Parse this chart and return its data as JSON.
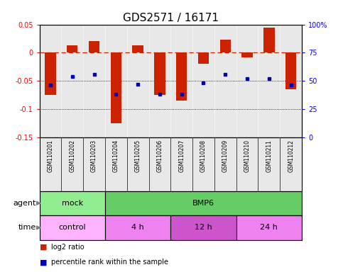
{
  "title": "GDS2571 / 16171",
  "samples": [
    "GSM110201",
    "GSM110202",
    "GSM110203",
    "GSM110204",
    "GSM110205",
    "GSM110206",
    "GSM110207",
    "GSM110208",
    "GSM110209",
    "GSM110210",
    "GSM110211",
    "GSM110212"
  ],
  "log2_ratio": [
    -0.075,
    0.013,
    0.02,
    -0.125,
    0.013,
    -0.075,
    -0.085,
    -0.02,
    0.023,
    -0.008,
    0.045,
    -0.065
  ],
  "percentile": [
    46,
    54,
    56,
    38,
    47,
    38,
    38,
    48,
    56,
    52,
    52,
    46
  ],
  "ylim_left": [
    -0.15,
    0.05
  ],
  "ylim_right": [
    0,
    100
  ],
  "yticks_left": [
    -0.15,
    -0.1,
    -0.05,
    0,
    0.05
  ],
  "yticks_right": [
    0,
    25,
    50,
    75,
    100
  ],
  "agent_groups": [
    {
      "label": "mock",
      "start": 0,
      "end": 3,
      "color": "#90ee90"
    },
    {
      "label": "BMP6",
      "start": 3,
      "end": 12,
      "color": "#66cc66"
    }
  ],
  "time_groups": [
    {
      "label": "control",
      "start": 0,
      "end": 3,
      "color": "#ffb3ff"
    },
    {
      "label": "4 h",
      "start": 3,
      "end": 6,
      "color": "#ee82ee"
    },
    {
      "label": "12 h",
      "start": 6,
      "end": 9,
      "color": "#cc55cc"
    },
    {
      "label": "24 h",
      "start": 9,
      "end": 12,
      "color": "#ee82ee"
    }
  ],
  "bar_color": "#cc2200",
  "dot_color": "#0000bb",
  "ref_line_color": "#cc2200",
  "bg_color": "#e8e8e8",
  "title_fontsize": 11,
  "tick_fontsize": 7,
  "label_fontsize": 8,
  "sample_fontsize": 5.5
}
